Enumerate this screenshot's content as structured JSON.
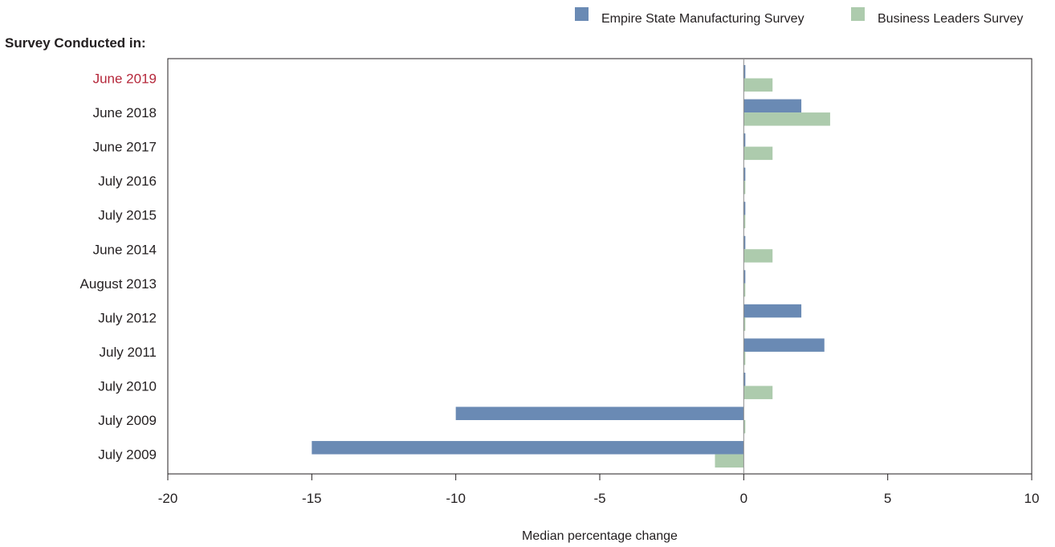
{
  "chart_data": {
    "type": "bar",
    "orientation": "horizontal",
    "y_title": "Survey Conducted in:",
    "xlabel": "Median percentage change",
    "xlim": [
      -20,
      10
    ],
    "xticks": [
      -20,
      -15,
      -10,
      -5,
      0,
      5,
      10
    ],
    "categories": [
      "June 2019",
      "June 2018",
      "June 2017",
      "July 2016",
      "July 2015",
      "June 2014",
      "August 2013",
      "July 2012",
      "July 2011",
      "July 2010",
      "July 2009",
      "July 2009"
    ],
    "highlight_category_index": 0,
    "series": [
      {
        "name": "Empire State Manufacturing Survey",
        "values": [
          0,
          2,
          0,
          0,
          0,
          0,
          0,
          2,
          2.8,
          0,
          -10,
          -15
        ]
      },
      {
        "name": "Business Leaders Survey",
        "values": [
          1,
          3,
          1,
          0,
          0,
          1,
          0,
          0,
          0,
          1,
          0,
          -1
        ]
      }
    ],
    "legend_position": "top-right",
    "grid": false
  },
  "colors": {
    "series": [
      "#6a8ab4",
      "#adcbad"
    ],
    "highlight_label": "#b5273a",
    "text": "#231f20",
    "axis": "#231f20"
  }
}
